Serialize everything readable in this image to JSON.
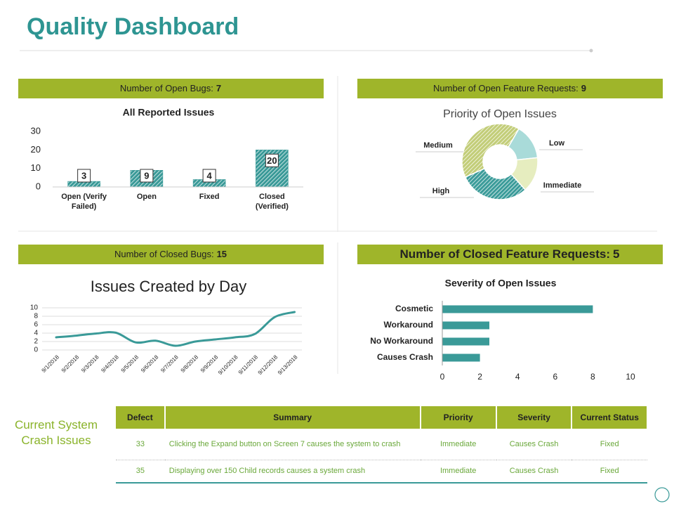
{
  "title": "Quality Dashboard",
  "panels": [
    {
      "label": "Number of Open Bugs:",
      "value": 7
    },
    {
      "label": "Number of Open Feature Requests:",
      "value": 9
    },
    {
      "label": "Number of Closed Bugs:",
      "value": 15
    },
    {
      "label": "Number of Closed Feature Requests:",
      "value": 5
    }
  ],
  "chart_data": [
    {
      "type": "bar",
      "title": "All Reported Issues",
      "categories": [
        "Open (Verify Failed)",
        "Open",
        "Fixed",
        "Closed (Verified)"
      ],
      "values": [
        3,
        9,
        4,
        20
      ],
      "color": "#3a9a98",
      "ylim": [
        0,
        30
      ],
      "yticks": [
        0,
        10,
        20,
        30
      ]
    },
    {
      "type": "donut",
      "title": "Priority of Open Issues",
      "categories": [
        "Low",
        "Immediate",
        "High",
        "Medium"
      ],
      "values": [
        15,
        15,
        30,
        40
      ],
      "colors": [
        "#a9dbd9",
        "#e6edbf",
        "#3c9c9a",
        "#c2cd78"
      ]
    },
    {
      "type": "line",
      "title": "Issues Created by Day",
      "categories": [
        "9/1/2018",
        "9/2/2018",
        "9/3/2018",
        "9/4/2018",
        "9/5/2018",
        "9/6/2018",
        "9/7/2018",
        "9/8/2018",
        "9/9/2018",
        "9/10/2018",
        "9/11/2018",
        "9/12/2018",
        "9/13/2018"
      ],
      "values": [
        3.0,
        3.4,
        3.9,
        4.1,
        1.8,
        2.2,
        1.0,
        2.0,
        2.5,
        3.0,
        3.8,
        7.8,
        9.0
      ],
      "color": "#3a9a98",
      "ylim": [
        0,
        10
      ],
      "yticks": [
        0,
        2,
        4,
        6,
        8,
        10
      ],
      "grid": true
    },
    {
      "type": "barh",
      "title": "Severity of Open Issues",
      "categories": [
        "Cosmetic",
        "Workaround",
        "No Workaround",
        "Causes Crash"
      ],
      "values": [
        8,
        2.5,
        2.5,
        2
      ],
      "color": "#3a9a98",
      "xlim": [
        0,
        10
      ],
      "xticks": [
        0,
        2,
        4,
        6,
        8,
        10
      ]
    }
  ],
  "crash_issues": {
    "title": "Current System Crash Issues",
    "columns": [
      "Defect",
      "Summary",
      "Priority",
      "Severity",
      "Current Status"
    ],
    "rows": [
      [
        33,
        "Clicking the Expand button on Screen 7 causes the system to crash",
        "Immediate",
        "Causes Crash",
        "Fixed"
      ],
      [
        35,
        "Displaying over 150 Child records causes a system crash",
        "Immediate",
        "Causes Crash",
        "Fixed"
      ]
    ]
  }
}
